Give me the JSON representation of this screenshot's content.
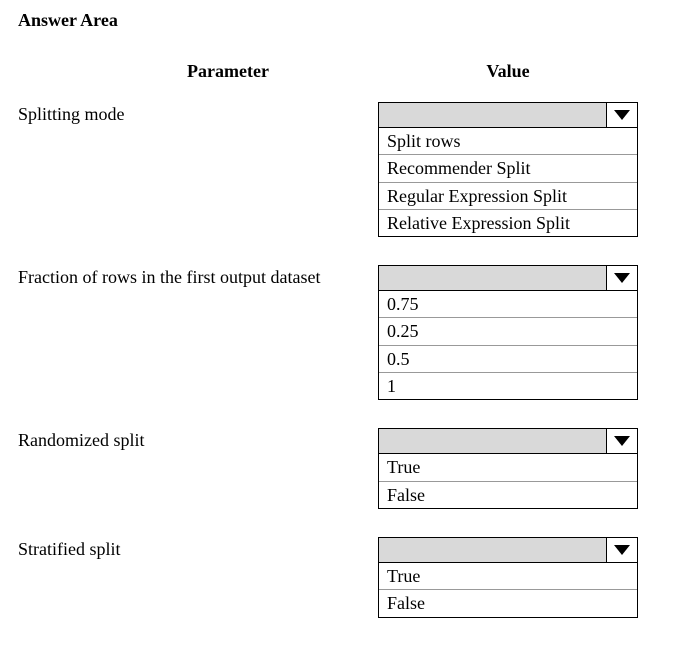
{
  "title": "Answer Area",
  "headers": {
    "parameter": "Parameter",
    "value": "Value"
  },
  "rows": [
    {
      "label": "Splitting mode",
      "options": [
        "Split rows",
        "Recommender Split",
        "Regular Expression Split",
        "Relative Expression Split"
      ]
    },
    {
      "label": "Fraction of rows in the first output dataset",
      "options": [
        "0.75",
        "0.25",
        "0.5",
        "1"
      ]
    },
    {
      "label": "Randomized split",
      "options": [
        "True",
        "False"
      ]
    },
    {
      "label": "Stratified split",
      "options": [
        "True",
        "False"
      ]
    }
  ],
  "colors": {
    "dropdown_bg": "#d9d9d9",
    "border": "#000000",
    "option_divider": "#999999"
  }
}
